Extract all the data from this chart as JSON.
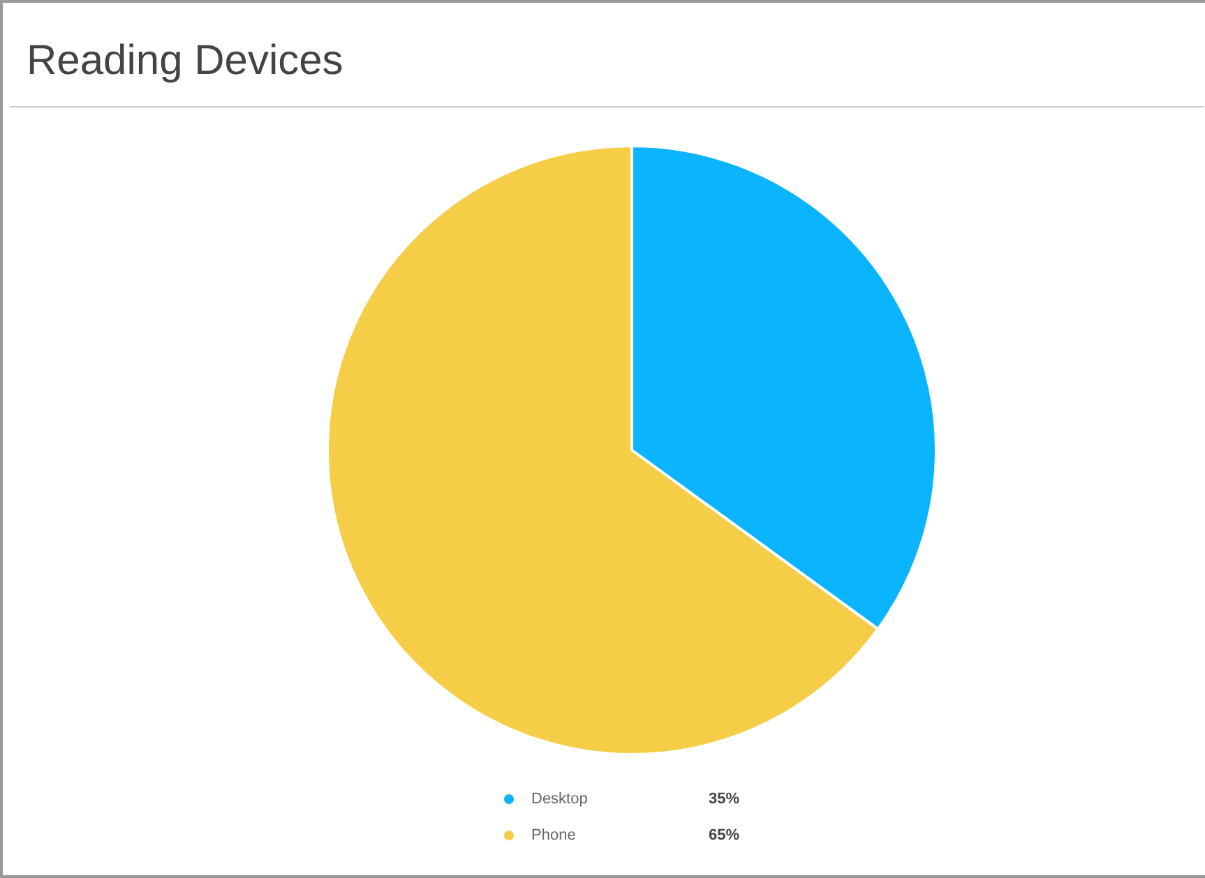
{
  "chart_data": {
    "type": "pie",
    "title": "Reading Devices",
    "categories": [
      "Desktop",
      "Phone"
    ],
    "values": [
      35,
      65
    ],
    "colors": [
      "#0bb4ff",
      "#f5cd47"
    ],
    "value_labels": [
      "35%",
      "65%"
    ],
    "legend": "bottom"
  }
}
